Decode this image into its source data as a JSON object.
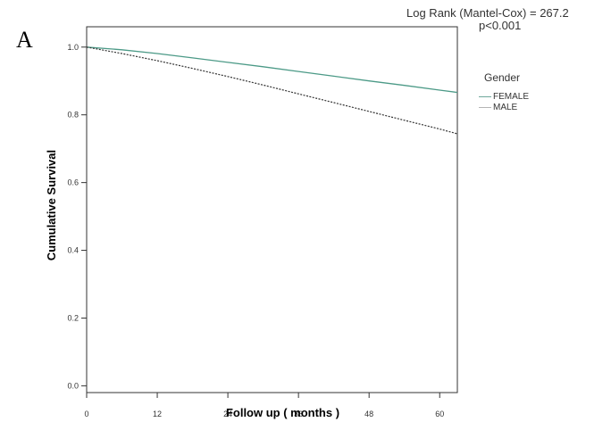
{
  "panel_label": "A",
  "annotation": {
    "line1": "Log Rank (Mantel-Cox) = 267.2",
    "line2": "p<0.001"
  },
  "legend": {
    "title": "Gender",
    "items": [
      {
        "label": "FEMALE",
        "color": "#6fa89b"
      },
      {
        "label": "MALE",
        "color": "#b4b4b4"
      }
    ]
  },
  "chart_data": {
    "type": "line",
    "title": "",
    "xlabel": "Follow up ( months )",
    "ylabel": "Cumulative Survival",
    "xlim": [
      0,
      63
    ],
    "ylim": [
      -0.02,
      1.06
    ],
    "x_ticks": [
      0,
      12,
      24,
      36,
      48,
      60
    ],
    "y_ticks": [
      0.0,
      0.2,
      0.4,
      0.6,
      0.8,
      1.0
    ],
    "y_tick_labels": [
      "0.0",
      "0.2",
      "0.4",
      "0.6",
      "0.8",
      "1.0"
    ],
    "grid": false,
    "legend_position": "right",
    "series": [
      {
        "name": "FEMALE",
        "color": "#4c9a87",
        "style": "solid",
        "x": [
          0,
          6,
          12,
          18,
          24,
          30,
          36,
          42,
          48,
          54,
          60,
          63
        ],
        "y": [
          1.0,
          0.992,
          0.981,
          0.968,
          0.955,
          0.942,
          0.928,
          0.914,
          0.9,
          0.887,
          0.873,
          0.866
        ]
      },
      {
        "name": "MALE",
        "color": "#333333",
        "style": "dotted",
        "x": [
          0,
          6,
          12,
          18,
          24,
          30,
          36,
          42,
          48,
          54,
          60,
          63
        ],
        "y": [
          1.0,
          0.981,
          0.96,
          0.937,
          0.913,
          0.888,
          0.862,
          0.836,
          0.81,
          0.784,
          0.758,
          0.744
        ]
      }
    ]
  }
}
